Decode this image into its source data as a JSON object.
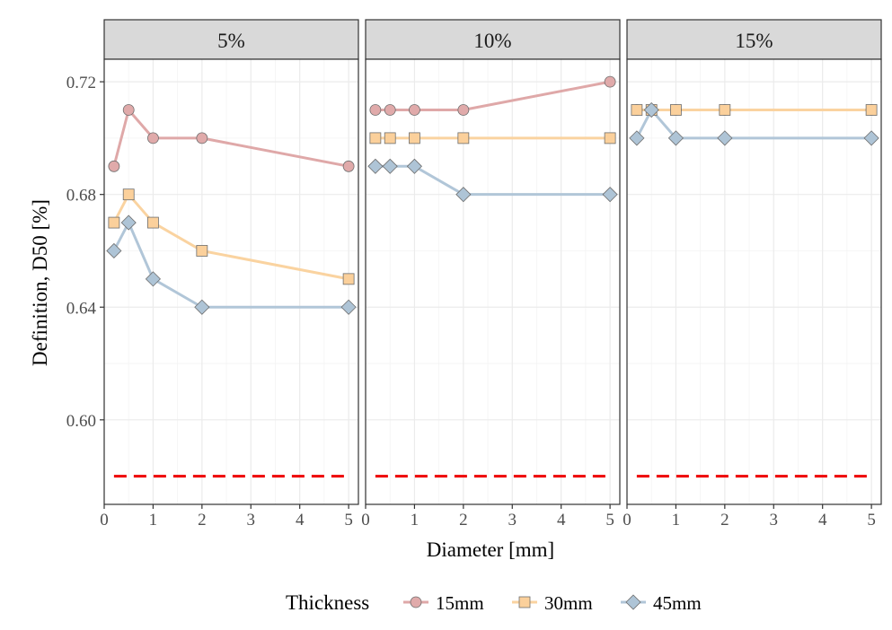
{
  "chart_data": {
    "type": "line",
    "xlabel": "Diameter [mm]",
    "ylabel": "Definition, D50 [%]",
    "xlim": [
      0,
      5.2
    ],
    "ylim": [
      0.57,
      0.728
    ],
    "x_ticks": [
      0,
      1,
      2,
      3,
      4,
      5
    ],
    "x_tick_labels": [
      "0",
      "1",
      "2",
      "3",
      "4",
      "5"
    ],
    "y_ticks": [
      0.6,
      0.64,
      0.68,
      0.72
    ],
    "y_tick_labels": [
      "0.60",
      "0.64",
      "0.68",
      "0.72"
    ],
    "grid": true,
    "reference_line": {
      "y": 0.58,
      "style": "dashed",
      "color": "#ee0000"
    },
    "legend": {
      "title": "Thickness",
      "position": "bottom",
      "entries": [
        {
          "label": "15mm",
          "shape": "circle",
          "color": "#e0aaaa",
          "line_color": "#dfa8a8"
        },
        {
          "label": "30mm",
          "shape": "square",
          "color": "#fbd09b",
          "line_color": "#fad3a0"
        },
        {
          "label": "45mm",
          "shape": "diamond",
          "color": "#aec4d6",
          "line_color": "#b1c6d8"
        }
      ]
    },
    "panels": [
      {
        "label": "5%",
        "series": [
          {
            "name": "15mm",
            "x": [
              0.2,
              0.5,
              1,
              2,
              5
            ],
            "y": [
              0.69,
              0.71,
              0.7,
              0.7,
              0.69
            ]
          },
          {
            "name": "30mm",
            "x": [
              0.2,
              0.5,
              1,
              2,
              5
            ],
            "y": [
              0.67,
              0.68,
              0.67,
              0.66,
              0.65
            ]
          },
          {
            "name": "45mm",
            "x": [
              0.2,
              0.5,
              1,
              2,
              5
            ],
            "y": [
              0.66,
              0.67,
              0.65,
              0.64,
              0.64
            ]
          }
        ]
      },
      {
        "label": "10%",
        "series": [
          {
            "name": "15mm",
            "x": [
              0.2,
              0.5,
              1,
              2,
              5
            ],
            "y": [
              0.71,
              0.71,
              0.71,
              0.71,
              0.72
            ]
          },
          {
            "name": "30mm",
            "x": [
              0.2,
              0.5,
              1,
              2,
              5
            ],
            "y": [
              0.7,
              0.7,
              0.7,
              0.7,
              0.7
            ]
          },
          {
            "name": "45mm",
            "x": [
              0.2,
              0.5,
              1,
              2,
              5
            ],
            "y": [
              0.69,
              0.69,
              0.69,
              0.68,
              0.68
            ]
          }
        ]
      },
      {
        "label": "15%",
        "series": [
          {
            "name": "15mm",
            "x": [
              0.2,
              0.5,
              1,
              2,
              5
            ],
            "y": [
              0.71,
              0.71,
              0.71,
              0.71,
              0.71
            ]
          },
          {
            "name": "30mm",
            "x": [
              0.2,
              0.5,
              1,
              2,
              5
            ],
            "y": [
              0.71,
              0.71,
              0.71,
              0.71,
              0.71
            ]
          },
          {
            "name": "45mm",
            "x": [
              0.2,
              0.5,
              1,
              2,
              5
            ],
            "y": [
              0.7,
              0.71,
              0.7,
              0.7,
              0.7
            ]
          }
        ]
      }
    ]
  }
}
